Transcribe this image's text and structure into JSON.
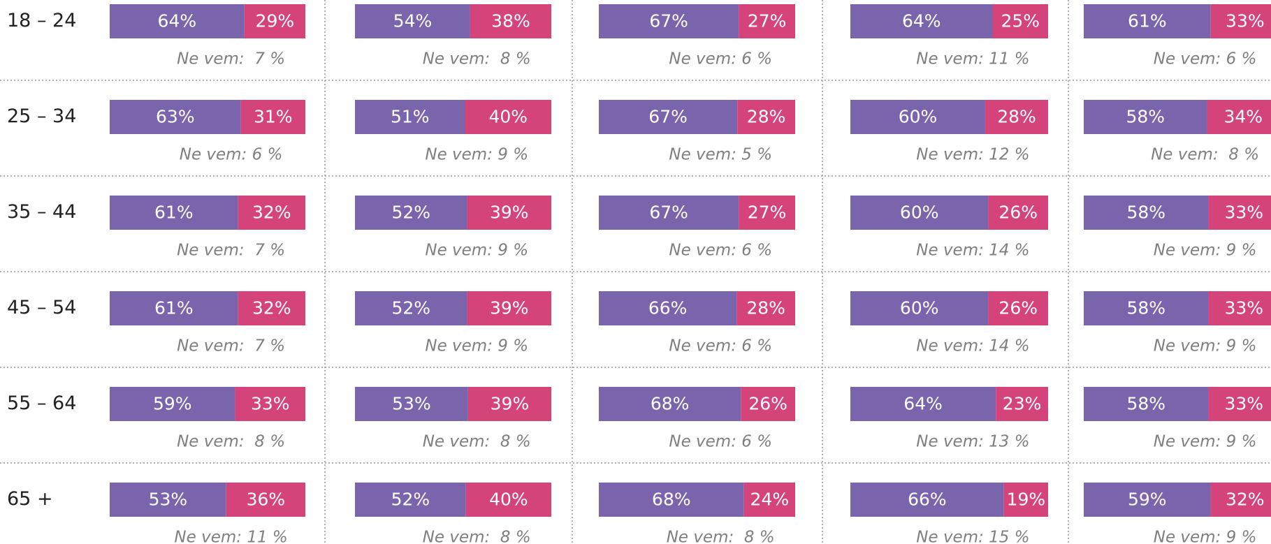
{
  "chart_data": {
    "type": "stacked-bar-grid",
    "categories": [
      "18 – 24",
      "25 – 34",
      "35 – 44",
      "45 – 54",
      "55 – 64",
      "65 +"
    ],
    "panels": [
      {
        "series": [
          {
            "color": "#7a65ad",
            "values": [
              64,
              63,
              61,
              61,
              59,
              53
            ],
            "value_labels": [
              "64%",
              "63%",
              "61%",
              "61%",
              "59%",
              "53%"
            ]
          },
          {
            "color": "#d5437b",
            "values": [
              29,
              31,
              32,
              32,
              33,
              36
            ],
            "value_labels": [
              "29%",
              "31%",
              "32%",
              "32%",
              "33%",
              "36%"
            ]
          }
        ],
        "annotations": [
          "Ne vem:  7 %",
          "Ne vem: 6 %",
          "Ne vem:  7 %",
          "Ne vem:  7 %",
          "Ne vem:  8 %",
          "Ne vem: 11 %"
        ]
      },
      {
        "series": [
          {
            "color": "#7a65ad",
            "values": [
              54,
              51,
              52,
              52,
              53,
              52
            ],
            "value_labels": [
              "54%",
              "51%",
              "52%",
              "52%",
              "53%",
              "52%"
            ]
          },
          {
            "color": "#d5437b",
            "values": [
              38,
              40,
              39,
              39,
              39,
              40
            ],
            "value_labels": [
              "38%",
              "40%",
              "39%",
              "39%",
              "39%",
              "40%"
            ]
          }
        ],
        "annotations": [
          "Ne vem:  8 %",
          "Ne vem: 9 %",
          "Ne vem: 9 %",
          "Ne vem: 9 %",
          "Ne vem:  8 %",
          "Ne vem:  8 %"
        ]
      },
      {
        "series": [
          {
            "color": "#7a65ad",
            "values": [
              67,
              67,
              67,
              66,
              68,
              68
            ],
            "value_labels": [
              "67%",
              "67%",
              "67%",
              "66%",
              "68%",
              "68%"
            ]
          },
          {
            "color": "#d5437b",
            "values": [
              27,
              28,
              27,
              28,
              26,
              24
            ],
            "value_labels": [
              "27%",
              "28%",
              "27%",
              "28%",
              "26%",
              "24%"
            ]
          }
        ],
        "annotations": [
          "Ne vem: 6 %",
          "Ne vem: 5 %",
          "Ne vem: 6 %",
          "Ne vem: 6 %",
          "Ne vem: 6 %",
          "Ne vem:  8 %"
        ]
      },
      {
        "series": [
          {
            "color": "#7a65ad",
            "values": [
              64,
              60,
              60,
              60,
              64,
              66
            ],
            "value_labels": [
              "64%",
              "60%",
              "60%",
              "60%",
              "64%",
              "66%"
            ]
          },
          {
            "color": "#d5437b",
            "values": [
              25,
              28,
              26,
              26,
              23,
              19
            ],
            "value_labels": [
              "25%",
              "28%",
              "26%",
              "26%",
              "23%",
              "19%"
            ]
          }
        ],
        "annotations": [
          "Ne vem: 11 %",
          "Ne vem: 12 %",
          "Ne vem: 14 %",
          "Ne vem: 14 %",
          "Ne vem: 13 %",
          "Ne vem: 15 %"
        ]
      },
      {
        "series": [
          {
            "color": "#7a65ad",
            "values": [
              61,
              58,
              58,
              58,
              58,
              59
            ],
            "value_labels": [
              "61%",
              "58%",
              "58%",
              "58%",
              "58%",
              "59%"
            ]
          },
          {
            "color": "#d5437b",
            "values": [
              33,
              34,
              33,
              33,
              33,
              32
            ],
            "value_labels": [
              "33%",
              "34%",
              "33%",
              "33%",
              "33%",
              "32%"
            ]
          }
        ],
        "annotations": [
          "Ne vem: 6 %",
          "Ne vem:  8 %",
          "Ne vem: 9 %",
          "Ne vem: 9 %",
          "Ne vem: 9 %",
          "Ne vem: 9 %"
        ]
      }
    ]
  }
}
